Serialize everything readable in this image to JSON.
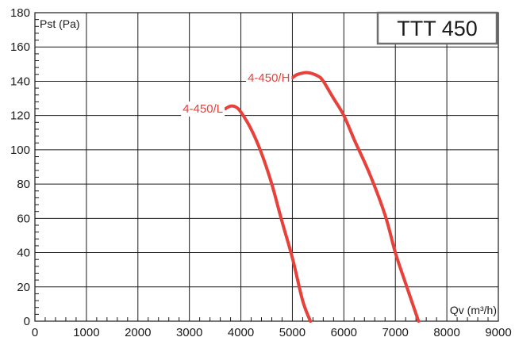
{
  "chart_data": {
    "type": "line",
    "title": "TTT 450",
    "xlabel": "Qv (m³/h)",
    "ylabel": "Pst (Pa)",
    "xlim": [
      0,
      9000
    ],
    "ylim": [
      0,
      180
    ],
    "x_ticks": [
      "0",
      "1000",
      "2000",
      "3000",
      "4000",
      "5000",
      "6000",
      "7000",
      "8000",
      "9000"
    ],
    "y_ticks": [
      "0",
      "20",
      "40",
      "60",
      "80",
      "100",
      "120",
      "140",
      "160",
      "180"
    ],
    "grid": true,
    "colors": {
      "series": "#e8403a",
      "grid": "#1a1a1a",
      "frame": "#1a1a1a",
      "title_box": "#6e6e6e"
    },
    "series": [
      {
        "name": "4-450/L",
        "x": [
          3700,
          3800,
          3900,
          4000,
          4200,
          4400,
          4600,
          4800,
          5000,
          5200,
          5350
        ],
        "y": [
          124,
          125.5,
          125,
          122,
          112,
          98,
          80,
          58,
          37,
          12,
          0
        ]
      },
      {
        "name": "4-450/H",
        "x": [
          5000,
          5100,
          5300,
          5500,
          5600,
          5800,
          6000,
          6200,
          6500,
          6800,
          7000,
          7200,
          7450
        ],
        "y": [
          142,
          144,
          145,
          143,
          140,
          130,
          120,
          106,
          86,
          62,
          40,
          22,
          0
        ]
      }
    ]
  }
}
